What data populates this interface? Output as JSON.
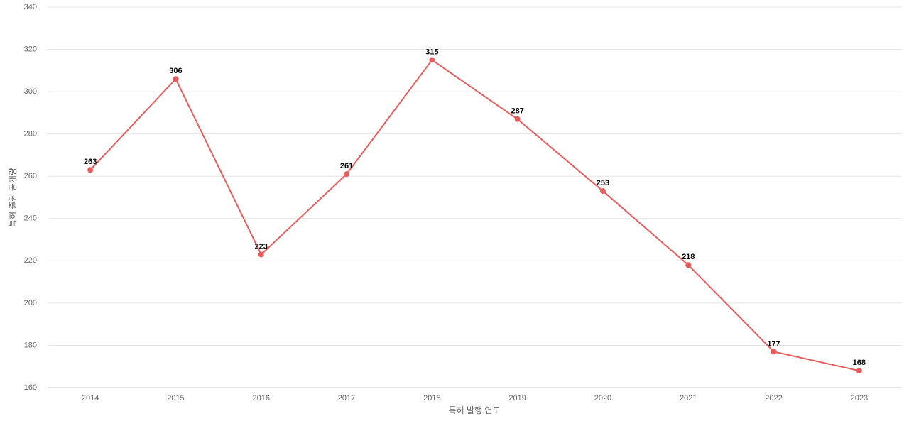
{
  "chart_data": {
    "type": "line",
    "x_label": "특허 발행 연도",
    "y_label": "특허 출원 공개량",
    "categories": [
      "2014",
      "2015",
      "2016",
      "2017",
      "2018",
      "2019",
      "2020",
      "2021",
      "2022",
      "2023"
    ],
    "values": [
      263,
      306,
      223,
      261,
      315,
      287,
      253,
      218,
      177,
      168
    ],
    "color": "#e85c5c",
    "ylim": [
      160,
      340
    ],
    "yticks": [
      160,
      180,
      200,
      220,
      240,
      260,
      280,
      300,
      320,
      340
    ],
    "grid": true
  }
}
